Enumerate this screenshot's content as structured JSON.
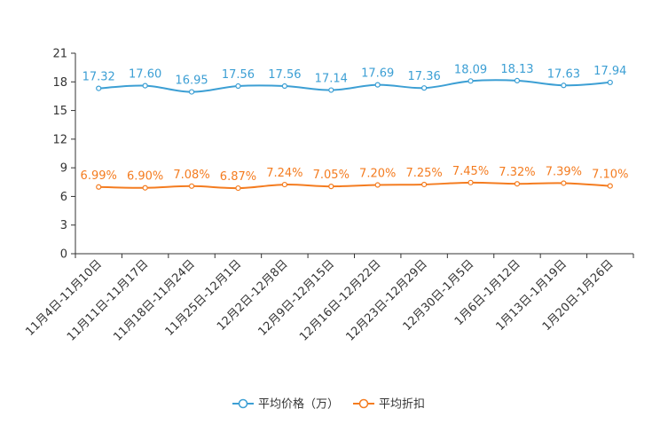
{
  "chart_data": {
    "type": "line",
    "categories": [
      "11月4日-11月10日",
      "11月11日-11月17日",
      "11月18日-11月24日",
      "11月25日-12月1日",
      "12月2日-12月8日",
      "12月9日-12月15日",
      "12月16日-12月22日",
      "12月23日-12月29日",
      "12月30日-1月5日",
      "1月6日-1月12日",
      "1月13日-1月19日",
      "1月20日-1月26日"
    ],
    "yticks": [
      0,
      3,
      6,
      9,
      12,
      15,
      18,
      21
    ],
    "ylim": [
      0,
      21
    ],
    "series": [
      {
        "name": "平均价格（万）",
        "color": "#3c9fd4",
        "values": [
          17.32,
          17.6,
          16.95,
          17.56,
          17.56,
          17.14,
          17.69,
          17.36,
          18.09,
          18.13,
          17.63,
          17.94
        ],
        "labels": [
          "17.32",
          "17.60",
          "16.95",
          "17.56",
          "17.56",
          "17.14",
          "17.69",
          "17.36",
          "18.09",
          "18.13",
          "17.63",
          "17.94"
        ]
      },
      {
        "name": "平均折扣",
        "color": "#f47c20",
        "values": [
          6.99,
          6.9,
          7.08,
          6.87,
          7.24,
          7.05,
          7.2,
          7.25,
          7.45,
          7.32,
          7.39,
          7.1
        ],
        "labels": [
          "6.99%",
          "6.90%",
          "7.08%",
          "6.87%",
          "7.24%",
          "7.05%",
          "7.20%",
          "7.25%",
          "7.45%",
          "7.32%",
          "7.39%",
          "7.10%"
        ]
      }
    ],
    "legend_position": "bottom-center",
    "grid": false
  }
}
